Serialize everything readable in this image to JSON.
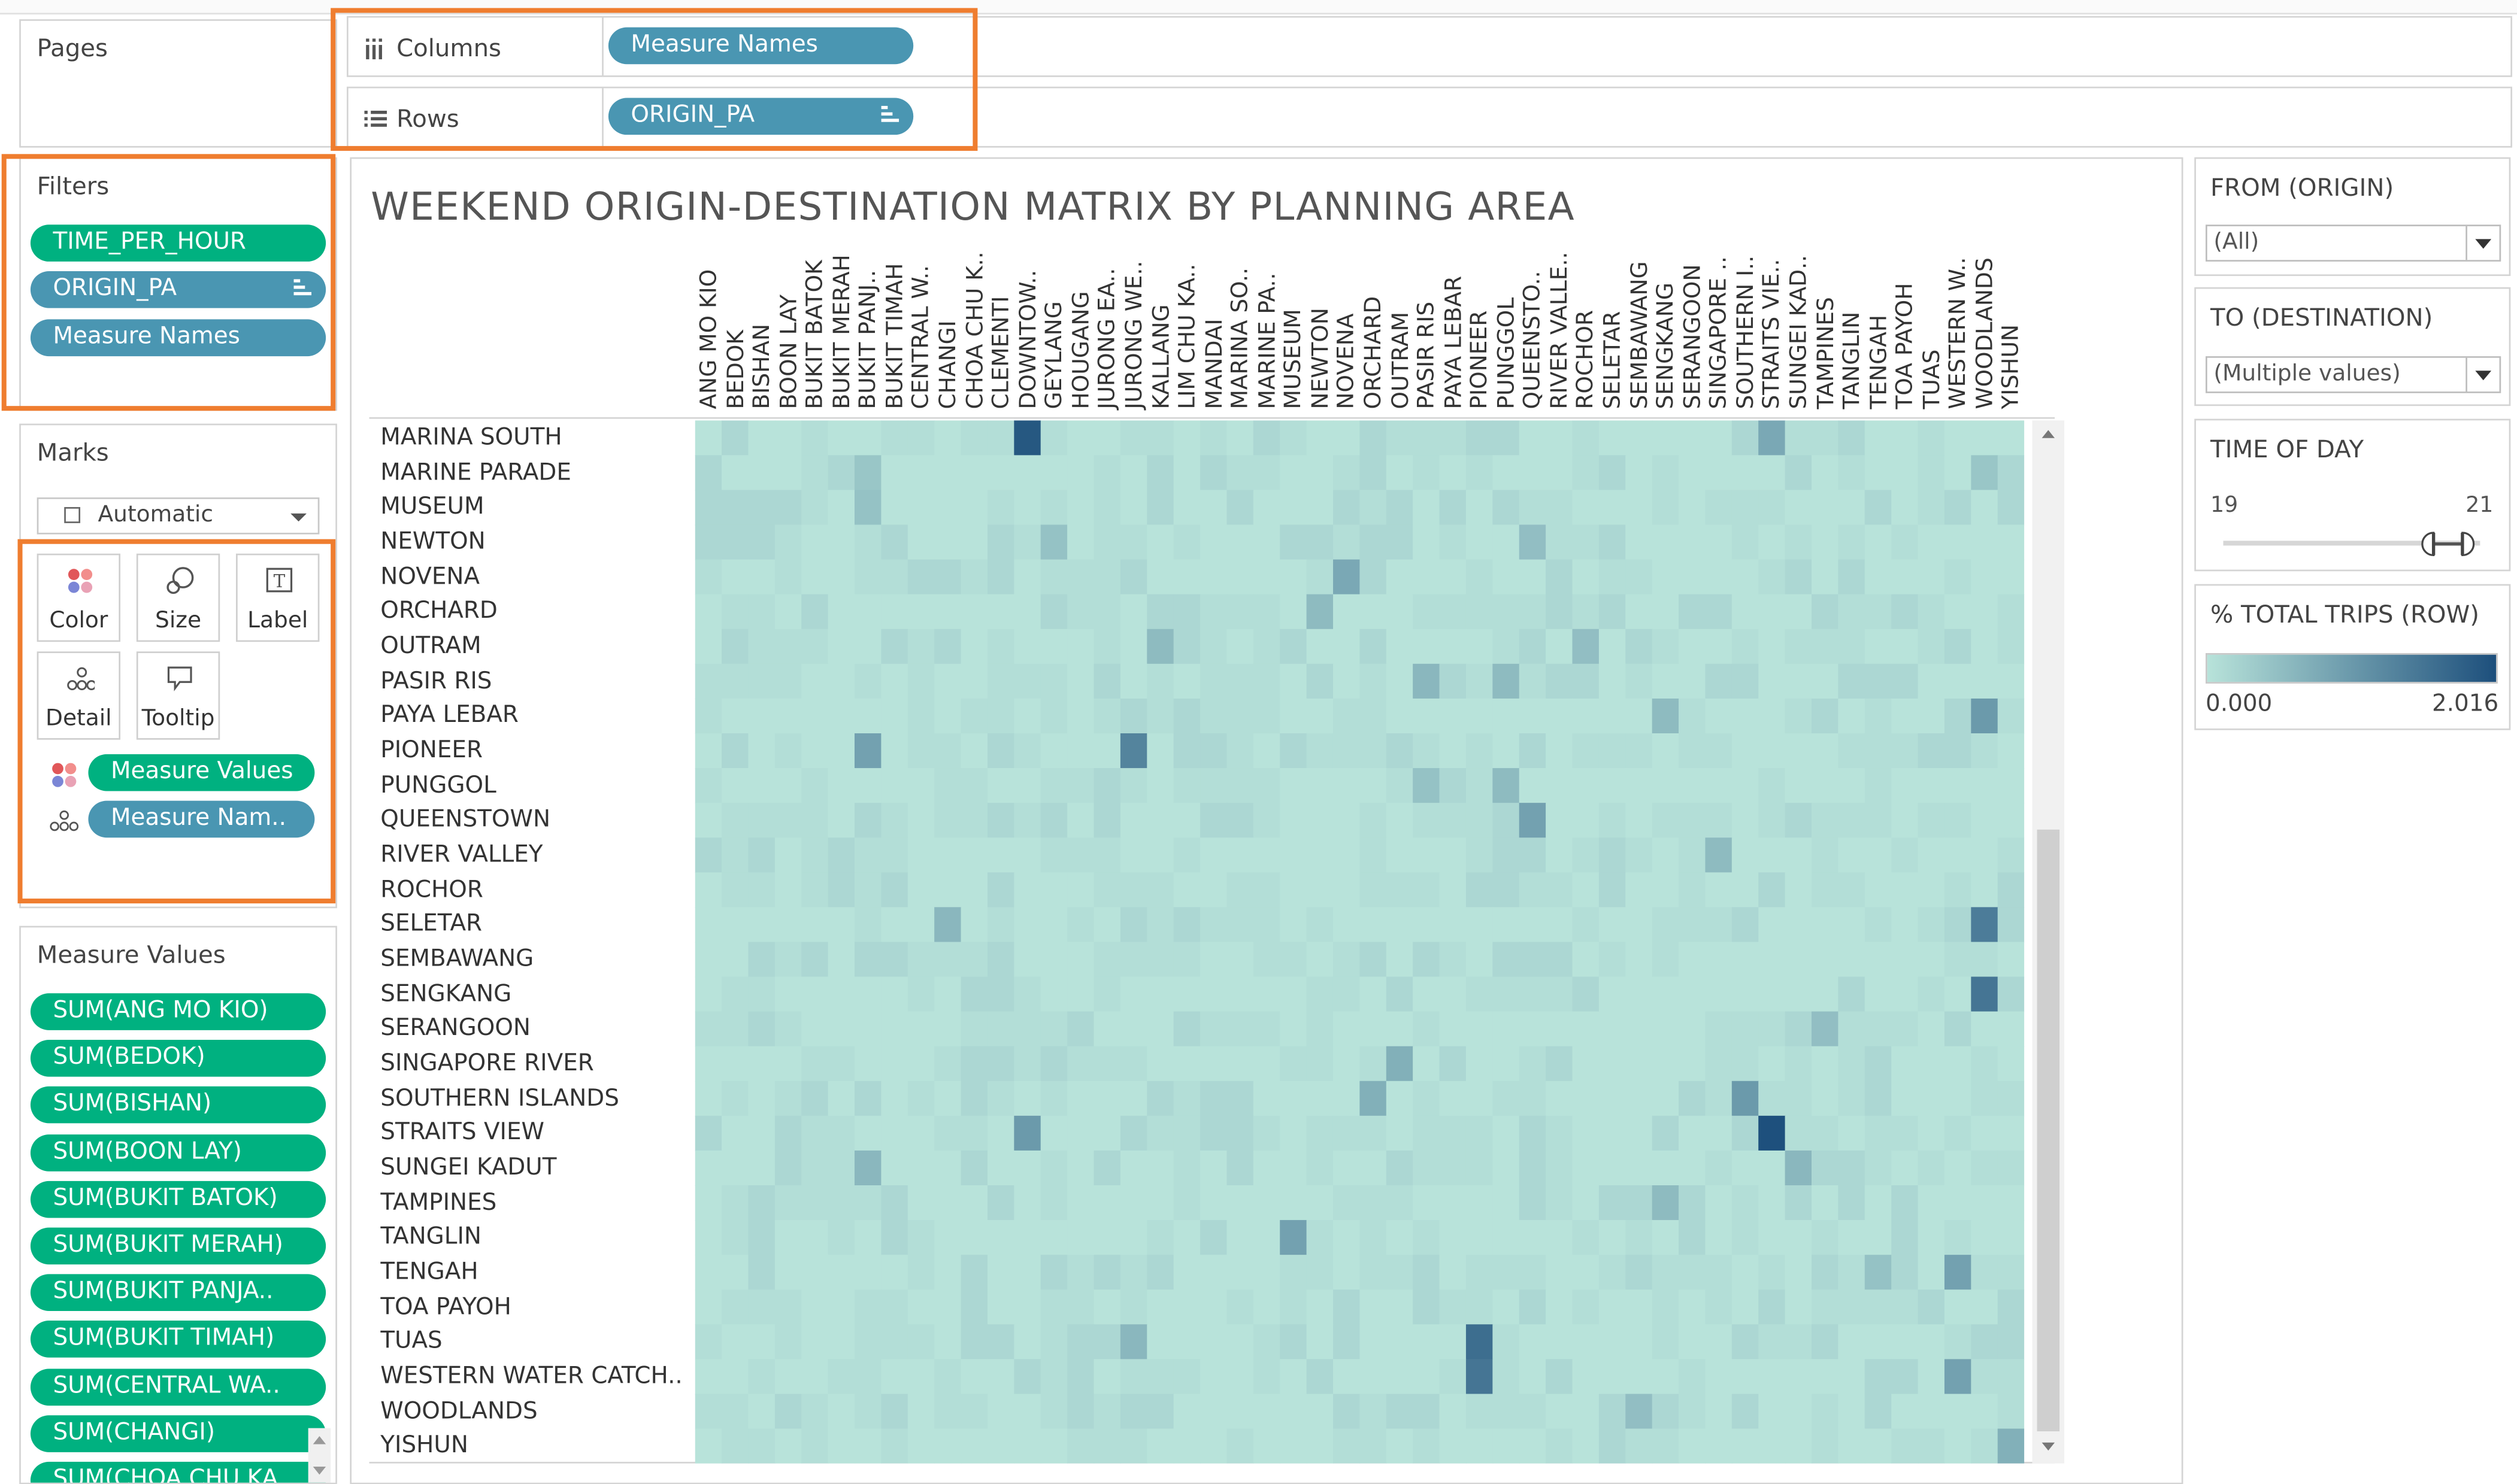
{
  "pages": {
    "title": "Pages"
  },
  "columns_shelf": {
    "label": "Columns",
    "pill": "Measure Names"
  },
  "rows_shelf": {
    "label": "Rows",
    "pill": "ORIGIN_PA"
  },
  "filters": {
    "title": "Filters",
    "items": [
      "TIME_PER_HOUR",
      "ORIGIN_PA",
      "Measure Names"
    ]
  },
  "marks": {
    "title": "Marks",
    "type_value": "Automatic",
    "buttons": [
      "Color",
      "Size",
      "Label",
      "Detail",
      "Tooltip"
    ],
    "fields": [
      "Measure Values",
      "Measure Nam.."
    ]
  },
  "measure_values": {
    "title": "Measure Values",
    "items": [
      "SUM(ANG MO KIO)",
      "SUM(BEDOK)",
      "SUM(BISHAN)",
      "SUM(BOON LAY)",
      "SUM(BUKIT BATOK)",
      "SUM(BUKIT MERAH)",
      "SUM(BUKIT PANJA..",
      "SUM(BUKIT TIMAH)",
      "SUM(CENTRAL WA..",
      "SUM(CHANGI)",
      "SUM(CHOA CHU KA.."
    ]
  },
  "chart": {
    "title": "WEEKEND ORIGIN-DESTINATION MATRIX BY PLANNING AREA"
  },
  "chart_data": {
    "type": "heatmap",
    "title": "WEEKEND ORIGIN-DESTINATION MATRIX BY PLANNING AREA",
    "columns": [
      "ANG MO KIO",
      "BEDOK",
      "BISHAN",
      "BOON LAY",
      "BUKIT BATOK",
      "BUKIT MERAH",
      "BUKIT PANJ..",
      "BUKIT TIMAH",
      "CENTRAL W..",
      "CHANGI",
      "CHOA CHU K..",
      "CLEMENTI",
      "DOWNTOW..",
      "GEYLANG",
      "HOUGANG",
      "JURONG EA..",
      "JURONG WE..",
      "KALLANG",
      "LIM CHU KA..",
      "MANDAI",
      "MARINA SO..",
      "MARINE PA..",
      "MUSEUM",
      "NEWTON",
      "NOVENA",
      "ORCHARD",
      "OUTRAM",
      "PASIR RIS",
      "PAYA LEBAR",
      "PIONEER",
      "PUNGGOL",
      "QUEENSTO..",
      "RIVER VALLE..",
      "ROCHOR",
      "SELETAR",
      "SEMBAWANG",
      "SENGKANG",
      "SERANGOON",
      "SINGAPORE ..",
      "SOUTHERN I..",
      "STRAITS VIE..",
      "SUNGEI KAD..",
      "TAMPINES",
      "TANGLIN",
      "TENGAH",
      "TOA PAYOH",
      "TUAS",
      "WESTERN W..",
      "WOODLANDS",
      "YISHUN"
    ],
    "rows": [
      "MARINA SOUTH",
      "MARINE PARADE",
      "MUSEUM",
      "NEWTON",
      "NOVENA",
      "ORCHARD",
      "OUTRAM",
      "PASIR RIS",
      "PAYA LEBAR",
      "PIONEER",
      "PUNGGOL",
      "QUEENSTOWN",
      "RIVER VALLEY",
      "ROCHOR",
      "SELETAR",
      "SEMBAWANG",
      "SENGKANG",
      "SERANGOON",
      "SINGAPORE RIVER",
      "SOUTHERN ISLANDS",
      "STRAITS VIEW",
      "SUNGEI KADUT",
      "TAMPINES",
      "TANGLIN",
      "TENGAH",
      "TOA PAYOH",
      "TUAS",
      "WESTERN WATER CATCH..",
      "WOODLANDS",
      "YISHUN"
    ],
    "color_min": "#b8e3da",
    "color_max": "#1d4f7c",
    "legend_min": 0.0,
    "legend_max": 2.016,
    "highlights": [
      {
        "row": "MARINA SOUTH",
        "col": "DOWNTOW..",
        "value": 1.9
      },
      {
        "row": "MARINA SOUTH",
        "col": "STRAITS VIE..",
        "value": 0.8
      },
      {
        "row": "MARINE PARADE",
        "col": "BUKIT PANJ..",
        "value": 0.4
      },
      {
        "row": "MARINE PARADE",
        "col": "WOODLANDS",
        "value": 0.4
      },
      {
        "row": "MUSEUM",
        "col": "BUKIT PANJ..",
        "value": 0.45
      },
      {
        "row": "NEWTON",
        "col": "GEYLANG",
        "value": 0.45
      },
      {
        "row": "NEWTON",
        "col": "QUEENSTO..",
        "value": 0.5
      },
      {
        "row": "NOVENA",
        "col": "NOVENA",
        "value": 0.8
      },
      {
        "row": "ORCHARD",
        "col": "NEWTON",
        "value": 0.55
      },
      {
        "row": "OUTRAM",
        "col": "KALLANG",
        "value": 0.55
      },
      {
        "row": "OUTRAM",
        "col": "ROCHOR",
        "value": 0.5
      },
      {
        "row": "PASIR RIS",
        "col": "PASIR RIS",
        "value": 0.6
      },
      {
        "row": "PASIR RIS",
        "col": "PUNGGOL",
        "value": 0.55
      },
      {
        "row": "PAYA LEBAR",
        "col": "WOODLANDS",
        "value": 1.0
      },
      {
        "row": "PAYA LEBAR",
        "col": "SENGKANG",
        "value": 0.55
      },
      {
        "row": "PIONEER",
        "col": "BUKIT PANJ..",
        "value": 0.9
      },
      {
        "row": "PIONEER",
        "col": "JURONG WE..",
        "value": 1.3
      },
      {
        "row": "PUNGGOL",
        "col": "PUNGGOL",
        "value": 0.55
      },
      {
        "row": "PUNGGOL",
        "col": "PASIR RIS",
        "value": 0.45
      },
      {
        "row": "QUEENSTOWN",
        "col": "QUEENSTO..",
        "value": 0.9
      },
      {
        "row": "RIVER VALLEY",
        "col": "SINGAPORE ..",
        "value": 0.55
      },
      {
        "row": "SELETAR",
        "col": "CHANGI",
        "value": 0.6
      },
      {
        "row": "SELETAR",
        "col": "WOODLANDS",
        "value": 1.4
      },
      {
        "row": "SENGKANG",
        "col": "WOODLANDS",
        "value": 1.5
      },
      {
        "row": "SERANGOON",
        "col": "TAMPINES",
        "value": 0.5
      },
      {
        "row": "SINGAPORE RIVER",
        "col": "OUTRAM",
        "value": 0.7
      },
      {
        "row": "SOUTHERN ISLANDS",
        "col": "ORCHARD",
        "value": 0.7
      },
      {
        "row": "SOUTHERN ISLANDS",
        "col": "SOUTHERN I..",
        "value": 1.0
      },
      {
        "row": "STRAITS VIEW",
        "col": "DOWNTOW..",
        "value": 1.0
      },
      {
        "row": "STRAITS VIEW",
        "col": "STRAITS VIE..",
        "value": 2.0
      },
      {
        "row": "SUNGEI KADUT",
        "col": "BUKIT PANJ..",
        "value": 0.6
      },
      {
        "row": "SUNGEI KADUT",
        "col": "SUNGEI KAD..",
        "value": 0.6
      },
      {
        "row": "TAMPINES",
        "col": "SENGKANG",
        "value": 0.55
      },
      {
        "row": "TANGLIN",
        "col": "MUSEUM",
        "value": 0.9
      },
      {
        "row": "TENGAH",
        "col": "WESTERN W..",
        "value": 0.9
      },
      {
        "row": "TENGAH",
        "col": "TENGAH",
        "value": 0.45
      },
      {
        "row": "TUAS",
        "col": "PIONEER",
        "value": 1.6
      },
      {
        "row": "TUAS",
        "col": "JURONG WE..",
        "value": 0.6
      },
      {
        "row": "WESTERN WATER CATCH..",
        "col": "PIONEER",
        "value": 1.5
      },
      {
        "row": "WESTERN WATER CATCH..",
        "col": "WESTERN W..",
        "value": 0.9
      },
      {
        "row": "WOODLANDS",
        "col": "SEMBAWANG",
        "value": 0.5
      },
      {
        "row": "YISHUN",
        "col": "YISHUN",
        "value": 0.7
      }
    ]
  },
  "quick_filters": {
    "from": {
      "title": "FROM (ORIGIN)",
      "value": "(All)"
    },
    "to": {
      "title": "TO (DESTINATION)",
      "value": "(Multiple values)"
    },
    "time": {
      "title": "TIME OF DAY",
      "min": "19",
      "max": "21"
    }
  },
  "legend": {
    "title": "% TOTAL TRIPS (ROW)",
    "min_label": "0.000",
    "max_label": "2.016"
  }
}
